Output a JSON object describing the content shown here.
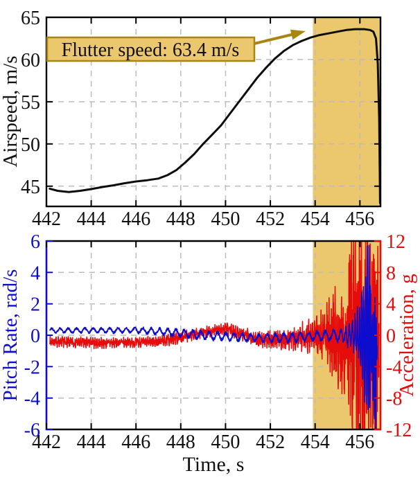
{
  "figure": {
    "colors": {
      "airspeed_line": "#0d0d0d",
      "pitch_rate": "#0d0dd0",
      "acceleration": "#e60c0c",
      "flutter_fill": "#ebc76e",
      "flutter_edge": "#a88611",
      "grid": "#bcbcbc",
      "axis_black": "#000000",
      "tick_text_black": "#111111"
    }
  },
  "chart_data": [
    {
      "type": "line",
      "panel": "top",
      "ylabel": "Airspeed, m/s",
      "xlim": [
        442,
        456.92
      ],
      "ylim": [
        42.6,
        65
      ],
      "xticks": [
        442,
        444,
        446,
        448,
        450,
        452,
        454,
        456
      ],
      "yticks": [
        45,
        50,
        55,
        60,
        65
      ],
      "grid": true,
      "flutter_region": {
        "xstart": 453.9,
        "xend": 456.92
      },
      "annotation": {
        "text": "Flutter speed: 63.4 m/s",
        "points_to": {
          "t": 453.6,
          "v": 63.4
        }
      },
      "series": [
        {
          "name": "airspeed",
          "x": [
            442.15,
            442.5,
            443.0,
            443.5,
            444.0,
            444.5,
            445.0,
            445.5,
            446.0,
            446.5,
            447.0,
            447.4,
            447.8,
            448.2,
            448.6,
            449.0,
            449.4,
            449.8,
            450.2,
            450.6,
            451.0,
            451.4,
            451.8,
            452.2,
            452.6,
            453.0,
            453.4,
            453.8,
            454.2,
            454.6,
            455.0,
            455.4,
            455.8,
            456.2,
            456.45,
            456.6,
            456.72,
            456.8,
            456.86,
            456.9
          ],
          "y": [
            44.7,
            44.45,
            44.3,
            44.45,
            44.65,
            44.9,
            45.1,
            45.35,
            45.55,
            45.7,
            45.9,
            46.3,
            46.9,
            47.8,
            48.8,
            50.0,
            51.1,
            52.2,
            53.6,
            55.0,
            56.4,
            57.8,
            59.0,
            60.1,
            61.0,
            61.7,
            62.2,
            62.6,
            62.9,
            63.1,
            63.3,
            63.5,
            63.6,
            63.6,
            63.5,
            63.3,
            62.5,
            59.5,
            53.0,
            43.0
          ]
        }
      ]
    },
    {
      "type": "line",
      "panel": "bottom",
      "xlabel": "Time, s",
      "ylabel_left": "Pitch Rate, rad/s",
      "ylabel_right": "Acceleration, g",
      "xlim": [
        442,
        456.92
      ],
      "ylim_left": [
        -6,
        6
      ],
      "ylim_right": [
        -12,
        12
      ],
      "xticks": [
        442,
        444,
        446,
        448,
        450,
        452,
        454,
        456
      ],
      "yticks_left": [
        6,
        4,
        2,
        0,
        -2,
        -4,
        -6
      ],
      "yticks_right": [
        12,
        8,
        4,
        0,
        -4,
        -8,
        -12
      ],
      "grid": true,
      "flutter_region": {
        "xstart": 453.9,
        "xend": 456.92
      },
      "series": [
        {
          "name": "acceleration",
          "axis": "right",
          "synth": {
            "seed": 7,
            "t_start": 442.15,
            "t_end": 456.85,
            "dt": 0.008,
            "sine_weight": 0.5,
            "noise_weight": 1.05,
            "freq": {
              "t": [
                442,
                457
              ],
              "hz": [
                11,
                11
              ]
            },
            "envelope": {
              "t": [
                442.15,
                443.0,
                444.5,
                446.0,
                447.0,
                447.8,
                448.6,
                449.3,
                450.0,
                450.6,
                451.3,
                452.2,
                452.8,
                453.3,
                453.9,
                454.3,
                454.7,
                455.0,
                455.3,
                455.6,
                455.9,
                456.3,
                456.55,
                456.75,
                456.85
              ],
              "mean": [
                -0.8,
                -0.9,
                -1.0,
                -0.9,
                -0.8,
                -0.4,
                0.1,
                0.5,
                0.8,
                0.3,
                -0.4,
                -0.6,
                -0.5,
                -0.3,
                -0.1,
                0,
                0,
                0,
                0,
                0,
                0,
                0,
                0,
                0,
                0
              ],
              "amp": [
                0.45,
                0.5,
                0.5,
                0.45,
                0.5,
                0.55,
                0.5,
                0.5,
                0.55,
                0.6,
                0.7,
                0.85,
                0.95,
                1.2,
                1.7,
                2.3,
                3.3,
                4.6,
                6.2,
                8.8,
                12.5,
                12.5,
                11.5,
                12.5,
                2.5
              ]
            }
          }
        },
        {
          "name": "pitch_rate",
          "axis": "left",
          "synth": {
            "seed": 20,
            "t_start": 442.15,
            "t_end": 456.78,
            "dt": 0.008,
            "sine_weight": 0.85,
            "noise_weight": 0.4,
            "freq": {
              "t": [
                442,
                455,
                456.7
              ],
              "hz": [
                2.7,
                2.7,
                16
              ]
            },
            "envelope": {
              "t": [
                442.15,
                446.0,
                447.0,
                448.3,
                449.0,
                450.3,
                451.5,
                453.0,
                453.9,
                454.8,
                455.3,
                455.7,
                456.0,
                456.15,
                456.3,
                456.45,
                456.55,
                456.62,
                456.68,
                456.78
              ],
              "mean": [
                0.3,
                0.32,
                0.25,
                0.1,
                0.0,
                -0.1,
                -0.18,
                -0.15,
                -0.05,
                0,
                0,
                0,
                0,
                0,
                0,
                0,
                -0.3,
                -1.6,
                -2.2,
                -0.2
              ],
              "amp": [
                0.15,
                0.18,
                0.22,
                0.26,
                0.28,
                0.25,
                0.25,
                0.3,
                0.3,
                0.35,
                0.5,
                0.9,
                1.8,
                3.2,
                5.6,
                4.5,
                2.2,
                4.5,
                5.5,
                0.4
              ]
            }
          }
        }
      ]
    }
  ]
}
